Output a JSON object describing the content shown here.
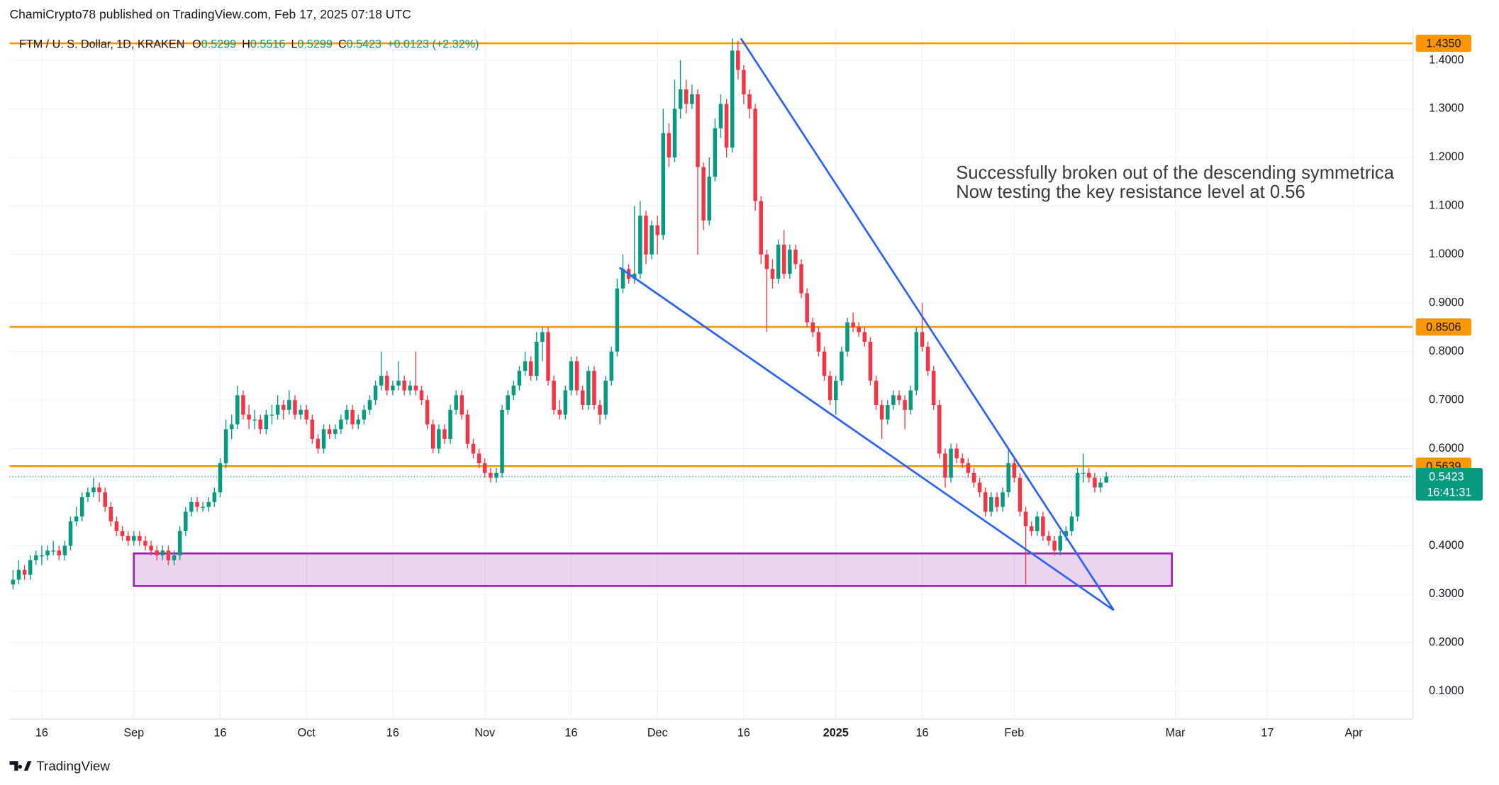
{
  "header": {
    "published": "ChamiCrypto78 published on TradingView.com, Feb 17, 2025 07:18 UTC",
    "symbol": "FTM / U. S. Dollar, 1D, KRAKEN",
    "ohlc": [
      {
        "key": "O",
        "value": "0.5299"
      },
      {
        "key": "H",
        "value": "0.5516"
      },
      {
        "key": "L",
        "value": "0.5299"
      },
      {
        "key": "C",
        "value": "0.5423"
      }
    ],
    "change": "+0.0123 (+2.32%)"
  },
  "footer": {
    "brand": "TradingView"
  },
  "chart_data": {
    "type": "candlestick",
    "up_color": "#089981",
    "down_color": "#f23645",
    "grid": true,
    "xlim": [
      -21.6,
      222.3
    ],
    "ylim": [
      0.043,
      1.465
    ],
    "xticks": [
      {
        "value": -16,
        "label": "16"
      },
      {
        "value": 0,
        "label": "Sep"
      },
      {
        "value": 15,
        "label": "16"
      },
      {
        "value": 30,
        "label": "Oct"
      },
      {
        "value": 45,
        "label": "16"
      },
      {
        "value": 61,
        "label": "Nov"
      },
      {
        "value": 76,
        "label": "16"
      },
      {
        "value": 91,
        "label": "Dec"
      },
      {
        "value": 106,
        "label": "16"
      },
      {
        "value": 122,
        "label": "2025"
      },
      {
        "value": 137,
        "label": "16"
      },
      {
        "value": 153,
        "label": "Feb"
      },
      {
        "value": 181,
        "label": "Mar"
      },
      {
        "value": 197,
        "label": "17"
      },
      {
        "value": 212,
        "label": "Apr"
      }
    ],
    "yticks": [
      {
        "value": 0.1,
        "label": "0.1000"
      },
      {
        "value": 0.2,
        "label": "0.2000"
      },
      {
        "value": 0.3,
        "label": "0.3000"
      },
      {
        "value": 0.4,
        "label": "0.4000"
      },
      {
        "value": 0.5,
        "label": "0.5000"
      },
      {
        "value": 0.6,
        "label": "0.6000"
      },
      {
        "value": 0.7,
        "label": "0.7000"
      },
      {
        "value": 0.8,
        "label": "0.8000"
      },
      {
        "value": 0.9,
        "label": "0.9000"
      },
      {
        "value": 1.0,
        "label": "1.0000"
      },
      {
        "value": 1.1,
        "label": "1.1000"
      },
      {
        "value": 1.2,
        "label": "1.2000"
      },
      {
        "value": 1.3,
        "label": "1.3000"
      },
      {
        "value": 1.4,
        "label": "1.4000"
      }
    ],
    "x": [
      -21,
      -20,
      -19,
      -18,
      -17,
      -16,
      -15,
      -14,
      -13,
      -12,
      -11,
      -10,
      -9,
      -8,
      -7,
      -6,
      -5,
      -4,
      -3,
      -2,
      -1,
      0,
      1,
      2,
      3,
      4,
      5,
      6,
      7,
      8,
      9,
      10,
      11,
      12,
      13,
      14,
      15,
      16,
      17,
      18,
      19,
      20,
      21,
      22,
      23,
      24,
      25,
      26,
      27,
      28,
      29,
      30,
      31,
      32,
      33,
      34,
      35,
      36,
      37,
      38,
      39,
      40,
      41,
      42,
      43,
      44,
      45,
      46,
      47,
      48,
      49,
      50,
      51,
      52,
      53,
      54,
      55,
      56,
      57,
      58,
      59,
      60,
      61,
      62,
      63,
      64,
      65,
      66,
      67,
      68,
      69,
      70,
      71,
      72,
      73,
      74,
      75,
      76,
      77,
      78,
      79,
      80,
      81,
      82,
      83,
      84,
      85,
      86,
      87,
      88,
      89,
      90,
      91,
      92,
      93,
      94,
      95,
      96,
      97,
      98,
      99,
      100,
      101,
      102,
      103,
      104,
      105,
      106,
      107,
      108,
      109,
      110,
      111,
      112,
      113,
      114,
      115,
      116,
      117,
      118,
      119,
      120,
      121,
      122,
      123,
      124,
      125,
      126,
      127,
      128,
      129,
      130,
      131,
      132,
      133,
      134,
      135,
      136,
      137,
      138,
      139,
      140,
      141,
      142,
      143,
      144,
      145,
      146,
      147,
      148,
      149,
      150,
      151,
      152,
      153,
      154,
      155,
      156,
      157,
      158,
      159,
      160,
      161,
      162,
      163,
      164,
      165,
      166,
      167,
      168,
      169
    ],
    "open": [
      0.32,
      0.33,
      0.35,
      0.34,
      0.37,
      0.38,
      0.38,
      0.39,
      0.39,
      0.38,
      0.4,
      0.45,
      0.46,
      0.5,
      0.51,
      0.52,
      0.51,
      0.48,
      0.45,
      0.43,
      0.42,
      0.41,
      0.42,
      0.41,
      0.4,
      0.39,
      0.38,
      0.39,
      0.37,
      0.38,
      0.43,
      0.47,
      0.49,
      0.48,
      0.48,
      0.49,
      0.51,
      0.57,
      0.64,
      0.65,
      0.71,
      0.67,
      0.66,
      0.66,
      0.64,
      0.67,
      0.67,
      0.69,
      0.68,
      0.7,
      0.67,
      0.68,
      0.66,
      0.62,
      0.6,
      0.64,
      0.63,
      0.64,
      0.66,
      0.68,
      0.65,
      0.66,
      0.68,
      0.7,
      0.73,
      0.75,
      0.72,
      0.73,
      0.74,
      0.72,
      0.73,
      0.72,
      0.7,
      0.65,
      0.6,
      0.64,
      0.62,
      0.68,
      0.71,
      0.67,
      0.61,
      0.59,
      0.57,
      0.55,
      0.54,
      0.55,
      0.68,
      0.71,
      0.73,
      0.76,
      0.78,
      0.75,
      0.82,
      0.84,
      0.74,
      0.68,
      0.67,
      0.72,
      0.78,
      0.72,
      0.69,
      0.76,
      0.69,
      0.67,
      0.74,
      0.8,
      0.93,
      0.97,
      0.95,
      0.96,
      1.08,
      1.0,
      1.06,
      1.04,
      1.25,
      1.2,
      1.3,
      1.34,
      1.31,
      1.33,
      1.18,
      1.07,
      1.16,
      1.26,
      1.31,
      1.22,
      1.42,
      1.38,
      1.33,
      1.3,
      1.11,
      1.0,
      0.97,
      0.95,
      1.02,
      0.96,
      1.01,
      0.98,
      0.92,
      0.86,
      0.84,
      0.8,
      0.75,
      0.7,
      0.74,
      0.8,
      0.86,
      0.85,
      0.84,
      0.82,
      0.74,
      0.69,
      0.66,
      0.69,
      0.71,
      0.7,
      0.68,
      0.72,
      0.84,
      0.81,
      0.76,
      0.69,
      0.59,
      0.54,
      0.6,
      0.58,
      0.57,
      0.55,
      0.53,
      0.51,
      0.47,
      0.5,
      0.48,
      0.51,
      0.57,
      0.54,
      0.47,
      0.44,
      0.43,
      0.46,
      0.42,
      0.41,
      0.39,
      0.42,
      0.43,
      0.46,
      0.55,
      0.55,
      0.54,
      0.52,
      0.5299
    ],
    "high": [
      0.35,
      0.37,
      0.36,
      0.38,
      0.39,
      0.4,
      0.4,
      0.41,
      0.4,
      0.41,
      0.46,
      0.48,
      0.51,
      0.52,
      0.54,
      0.53,
      0.52,
      0.49,
      0.46,
      0.44,
      0.43,
      0.43,
      0.43,
      0.42,
      0.41,
      0.4,
      0.4,
      0.4,
      0.39,
      0.44,
      0.48,
      0.5,
      0.5,
      0.49,
      0.5,
      0.52,
      0.58,
      0.66,
      0.67,
      0.73,
      0.72,
      0.69,
      0.68,
      0.67,
      0.68,
      0.69,
      0.71,
      0.7,
      0.72,
      0.71,
      0.69,
      0.69,
      0.67,
      0.63,
      0.65,
      0.65,
      0.65,
      0.67,
      0.69,
      0.69,
      0.67,
      0.69,
      0.71,
      0.74,
      0.8,
      0.76,
      0.74,
      0.78,
      0.75,
      0.74,
      0.8,
      0.73,
      0.71,
      0.66,
      0.65,
      0.65,
      0.69,
      0.72,
      0.72,
      0.68,
      0.62,
      0.6,
      0.58,
      0.56,
      0.56,
      0.69,
      0.72,
      0.74,
      0.77,
      0.8,
      0.79,
      0.84,
      0.85,
      0.85,
      0.75,
      0.7,
      0.73,
      0.79,
      0.79,
      0.73,
      0.77,
      0.77,
      0.7,
      0.75,
      0.81,
      0.95,
      1.0,
      0.98,
      1.1,
      1.11,
      1.09,
      1.07,
      1.08,
      1.3,
      1.27,
      1.36,
      1.4,
      1.36,
      1.35,
      1.34,
      1.19,
      1.2,
      1.28,
      1.33,
      1.32,
      1.445,
      1.44,
      1.39,
      1.34,
      1.31,
      1.12,
      1.01,
      0.99,
      1.03,
      1.05,
      1.02,
      1.02,
      0.99,
      0.93,
      0.87,
      0.85,
      0.81,
      0.76,
      0.75,
      0.81,
      0.87,
      0.88,
      0.86,
      0.85,
      0.83,
      0.75,
      0.7,
      0.7,
      0.72,
      0.72,
      0.71,
      0.73,
      0.85,
      0.9,
      0.82,
      0.77,
      0.7,
      0.6,
      0.61,
      0.61,
      0.59,
      0.58,
      0.56,
      0.54,
      0.52,
      0.51,
      0.51,
      0.52,
      0.6,
      0.58,
      0.55,
      0.48,
      0.45,
      0.47,
      0.47,
      0.43,
      0.42,
      0.43,
      0.44,
      0.47,
      0.56,
      0.59,
      0.56,
      0.55,
      0.54,
      0.5516
    ],
    "low": [
      0.31,
      0.32,
      0.33,
      0.33,
      0.36,
      0.36,
      0.37,
      0.38,
      0.37,
      0.37,
      0.39,
      0.44,
      0.45,
      0.49,
      0.5,
      0.49,
      0.47,
      0.44,
      0.42,
      0.41,
      0.4,
      0.4,
      0.4,
      0.39,
      0.38,
      0.37,
      0.37,
      0.36,
      0.36,
      0.37,
      0.42,
      0.46,
      0.47,
      0.47,
      0.47,
      0.48,
      0.5,
      0.56,
      0.62,
      0.64,
      0.66,
      0.64,
      0.64,
      0.63,
      0.63,
      0.65,
      0.66,
      0.66,
      0.67,
      0.66,
      0.66,
      0.65,
      0.61,
      0.59,
      0.59,
      0.62,
      0.62,
      0.63,
      0.65,
      0.64,
      0.64,
      0.65,
      0.67,
      0.69,
      0.72,
      0.71,
      0.71,
      0.72,
      0.71,
      0.71,
      0.71,
      0.69,
      0.64,
      0.59,
      0.59,
      0.61,
      0.61,
      0.67,
      0.66,
      0.6,
      0.58,
      0.56,
      0.54,
      0.53,
      0.53,
      0.54,
      0.67,
      0.7,
      0.72,
      0.75,
      0.74,
      0.74,
      0.78,
      0.73,
      0.67,
      0.66,
      0.66,
      0.71,
      0.71,
      0.68,
      0.68,
      0.68,
      0.65,
      0.66,
      0.73,
      0.79,
      0.92,
      0.94,
      0.94,
      0.95,
      0.98,
      0.99,
      1.0,
      1.03,
      1.18,
      1.19,
      1.28,
      1.29,
      1.3,
      1.0,
      1.05,
      1.06,
      1.15,
      1.24,
      1.2,
      1.21,
      1.36,
      1.31,
      1.28,
      1.09,
      0.98,
      0.84,
      0.93,
      0.94,
      0.95,
      0.95,
      0.97,
      0.91,
      0.85,
      0.83,
      0.79,
      0.74,
      0.69,
      0.67,
      0.73,
      0.79,
      0.84,
      0.83,
      0.81,
      0.73,
      0.68,
      0.62,
      0.65,
      0.68,
      0.69,
      0.64,
      0.67,
      0.71,
      0.8,
      0.75,
      0.68,
      0.58,
      0.52,
      0.53,
      0.57,
      0.56,
      0.54,
      0.52,
      0.5,
      0.46,
      0.46,
      0.47,
      0.47,
      0.5,
      0.53,
      0.46,
      0.32,
      0.42,
      0.42,
      0.41,
      0.4,
      0.38,
      0.38,
      0.41,
      0.42,
      0.45,
      0.53,
      0.53,
      0.51,
      0.51,
      0.5299
    ],
    "close": [
      0.33,
      0.35,
      0.34,
      0.37,
      0.38,
      0.38,
      0.39,
      0.39,
      0.38,
      0.4,
      0.45,
      0.46,
      0.5,
      0.51,
      0.52,
      0.51,
      0.48,
      0.45,
      0.43,
      0.42,
      0.41,
      0.42,
      0.41,
      0.4,
      0.39,
      0.38,
      0.39,
      0.37,
      0.38,
      0.43,
      0.47,
      0.49,
      0.48,
      0.48,
      0.49,
      0.51,
      0.57,
      0.64,
      0.65,
      0.71,
      0.67,
      0.66,
      0.66,
      0.64,
      0.67,
      0.67,
      0.69,
      0.68,
      0.7,
      0.67,
      0.68,
      0.66,
      0.62,
      0.6,
      0.64,
      0.63,
      0.64,
      0.66,
      0.68,
      0.65,
      0.66,
      0.68,
      0.7,
      0.73,
      0.75,
      0.72,
      0.73,
      0.74,
      0.72,
      0.73,
      0.72,
      0.7,
      0.65,
      0.6,
      0.64,
      0.62,
      0.68,
      0.71,
      0.67,
      0.61,
      0.59,
      0.57,
      0.55,
      0.54,
      0.55,
      0.68,
      0.71,
      0.73,
      0.76,
      0.78,
      0.75,
      0.82,
      0.84,
      0.74,
      0.68,
      0.67,
      0.72,
      0.78,
      0.72,
      0.69,
      0.76,
      0.69,
      0.67,
      0.74,
      0.8,
      0.93,
      0.97,
      0.95,
      0.96,
      1.08,
      1.0,
      1.06,
      1.04,
      1.25,
      1.2,
      1.3,
      1.34,
      1.31,
      1.33,
      1.18,
      1.07,
      1.16,
      1.26,
      1.31,
      1.22,
      1.42,
      1.38,
      1.33,
      1.3,
      1.11,
      1.0,
      0.97,
      0.95,
      1.02,
      0.96,
      1.01,
      0.98,
      0.92,
      0.86,
      0.84,
      0.8,
      0.75,
      0.7,
      0.74,
      0.8,
      0.86,
      0.85,
      0.84,
      0.82,
      0.74,
      0.69,
      0.66,
      0.69,
      0.71,
      0.7,
      0.68,
      0.72,
      0.84,
      0.81,
      0.76,
      0.69,
      0.59,
      0.54,
      0.6,
      0.58,
      0.57,
      0.55,
      0.53,
      0.51,
      0.47,
      0.5,
      0.48,
      0.51,
      0.57,
      0.54,
      0.47,
      0.44,
      0.43,
      0.46,
      0.42,
      0.41,
      0.39,
      0.42,
      0.43,
      0.46,
      0.55,
      0.55,
      0.54,
      0.52,
      0.53,
      0.5423
    ],
    "levels": [
      {
        "value": 1.435,
        "label": "1.4350"
      },
      {
        "value": 0.8506,
        "label": "0.8506"
      },
      {
        "value": 0.5639,
        "label": "0.5639"
      }
    ],
    "level_color": "#ff9800",
    "last_price": {
      "value": 0.5423,
      "label": "0.5423",
      "countdown": "16:41:31"
    },
    "trendlines": [
      {
        "x": [
          105.5,
          170.3
        ],
        "y": [
          1.445,
          0.267
        ]
      },
      {
        "x": [
          84.4,
          170.3
        ],
        "y": [
          0.973,
          0.267
        ]
      }
    ],
    "trendline_color": "#2962ff",
    "zone": {
      "x": [
        0,
        180.4
      ],
      "y": [
        0.317,
        0.384
      ]
    },
    "zone_color": "#9c27b0",
    "annotation": [
      "Successfully broken out of the descending symmetrica",
      "Now testing the key resistance level at 0.56"
    ]
  }
}
